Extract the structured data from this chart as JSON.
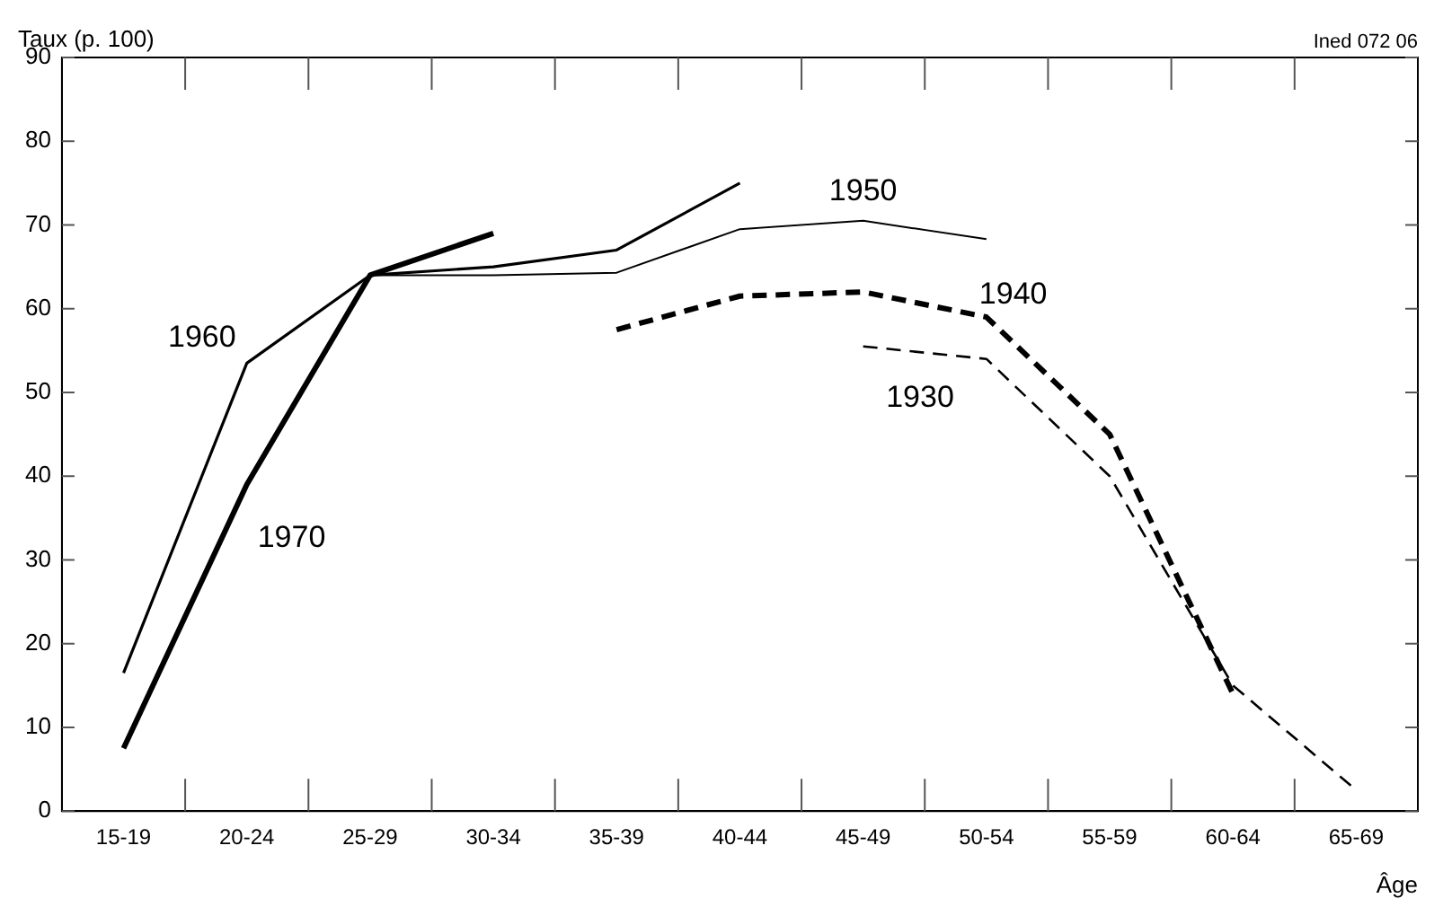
{
  "chart_data": {
    "type": "line",
    "xlabel": "Âge",
    "ylabel": "Taux (p. 100)",
    "annotations": [
      "Ined 072 06"
    ],
    "categories": [
      "15-19",
      "20-24",
      "25-29",
      "30-34",
      "35-39",
      "40-44",
      "45-49",
      "50-54",
      "55-59",
      "60-64",
      "65-69"
    ],
    "series": [
      {
        "name": "1970",
        "color": "#000000",
        "line_style": "solid",
        "values": [
          7.5,
          39,
          64,
          69,
          null,
          null,
          null,
          null,
          null,
          null,
          null
        ]
      },
      {
        "name": "1960",
        "color": "#000000",
        "line_style": "solid",
        "values": [
          16.5,
          53.5,
          64,
          65,
          67,
          75,
          null,
          null,
          null,
          null,
          null
        ]
      },
      {
        "name": "1950",
        "color": "#000000",
        "line_style": "solid",
        "values": [
          null,
          null,
          64,
          64,
          64.3,
          69.5,
          70.5,
          68.3,
          null,
          null,
          null
        ]
      },
      {
        "name": "1940",
        "color": "#000000",
        "line_style": "dashed",
        "values": [
          null,
          null,
          null,
          null,
          57.5,
          61.5,
          62,
          59,
          45,
          14,
          null
        ]
      },
      {
        "name": "1930",
        "color": "#000000",
        "line_style": "dashed",
        "values": [
          null,
          null,
          null,
          null,
          null,
          null,
          55.5,
          54,
          40,
          15,
          2.5
        ]
      }
    ],
    "ylim": [
      0,
      90
    ],
    "yticks": [
      0,
      10,
      20,
      30,
      40,
      50,
      60,
      70,
      80,
      90
    ],
    "grid": false,
    "legend": false,
    "marker": "none"
  }
}
